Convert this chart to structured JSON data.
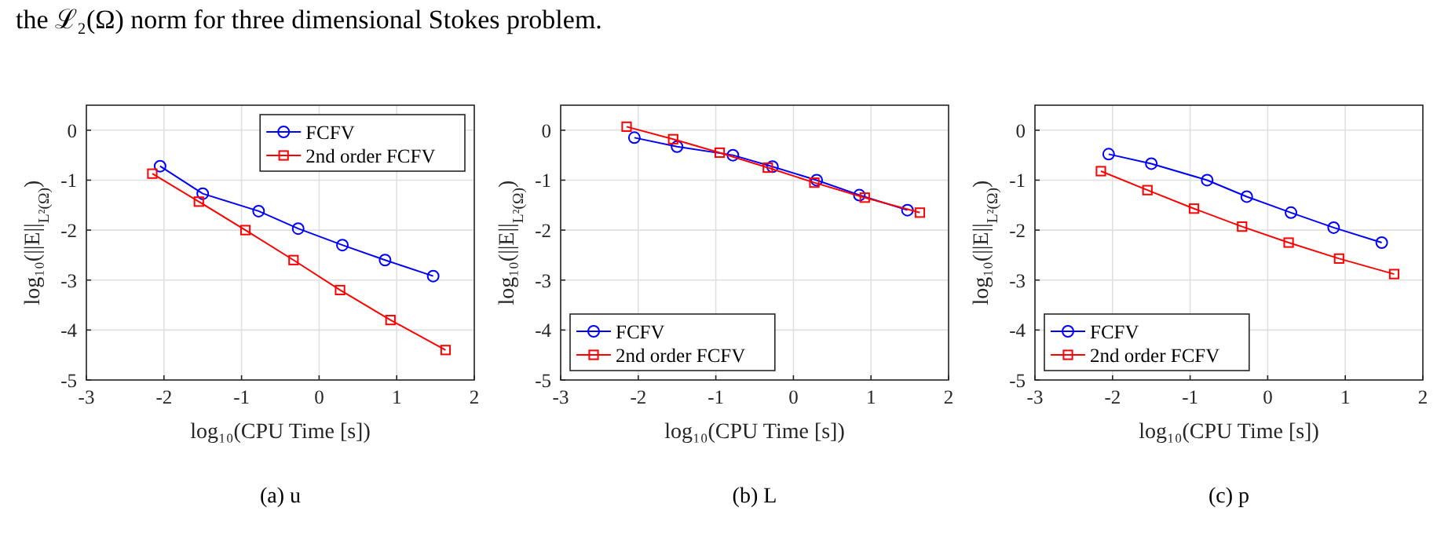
{
  "chart_data": [
    {
      "type": "line",
      "subtitle": "(a) u",
      "xlabel": "log₁₀(CPU Time [s])",
      "ylabel": "log₁₀(||E||$_{L²(Ω)}$)",
      "xlim": [
        -3,
        2
      ],
      "ylim": [
        -5,
        0.5
      ],
      "xticks": [
        -3,
        -2,
        -1,
        0,
        1,
        2
      ],
      "yticks": [
        -5,
        -4,
        -3,
        -2,
        -1,
        0
      ],
      "grid": true,
      "legend": "top right",
      "annotations": [
        "the ℒ₂(Ω) norm for three dimensional Stokes problem."
      ],
      "series": [
        {
          "name": "FCFV",
          "color": "#0000ff",
          "marker": "circle",
          "x": [
            -2.05,
            -1.5,
            -0.78,
            -0.27,
            0.3,
            0.85,
            1.47
          ],
          "values": [
            -0.72,
            -1.27,
            -1.62,
            -1.97,
            -2.3,
            -2.6,
            -2.92
          ]
        },
        {
          "name": "2nd order FCFV",
          "color": "#ff0000",
          "marker": "square",
          "x": [
            -2.15,
            -1.55,
            -0.95,
            -0.33,
            0.27,
            0.92,
            1.63
          ],
          "values": [
            -0.87,
            -1.43,
            -2.0,
            -2.6,
            -3.2,
            -3.8,
            -4.4
          ]
        }
      ]
    },
    {
      "type": "line",
      "subtitle": "(b) L",
      "xlabel": "log₁₀(CPU Time [s])",
      "ylabel": "log₁₀(||E||$_{L²(Ω)}$)",
      "xlim": [
        -3,
        2
      ],
      "ylim": [
        -5,
        0.5
      ],
      "xticks": [
        -3,
        -2,
        -1,
        0,
        1,
        2
      ],
      "yticks": [
        -5,
        -4,
        -3,
        -2,
        -1,
        0
      ],
      "grid": true,
      "legend": "bottom left",
      "series": [
        {
          "name": "FCFV",
          "color": "#0000ff",
          "marker": "circle",
          "x": [
            -2.05,
            -1.5,
            -0.78,
            -0.27,
            0.3,
            0.85,
            1.47
          ],
          "values": [
            -0.15,
            -0.33,
            -0.5,
            -0.73,
            -1.0,
            -1.3,
            -1.6
          ]
        },
        {
          "name": "2nd order FCFV",
          "color": "#ff0000",
          "marker": "square",
          "x": [
            -2.15,
            -1.55,
            -0.95,
            -0.33,
            0.27,
            0.92,
            1.63
          ],
          "values": [
            0.07,
            -0.18,
            -0.45,
            -0.75,
            -1.05,
            -1.35,
            -1.65
          ]
        }
      ]
    },
    {
      "type": "line",
      "subtitle": "(c) p",
      "xlabel": "log₁₀(CPU Time [s])",
      "ylabel": "log₁₀(||E||$_{L²(Ω)}$)",
      "xlim": [
        -3,
        2
      ],
      "ylim": [
        -5,
        0.5
      ],
      "xticks": [
        -3,
        -2,
        -1,
        0,
        1,
        2
      ],
      "yticks": [
        -5,
        -4,
        -3,
        -2,
        -1,
        0
      ],
      "grid": true,
      "legend": "bottom left",
      "series": [
        {
          "name": "FCFV",
          "color": "#0000ff",
          "marker": "circle",
          "x": [
            -2.05,
            -1.5,
            -0.78,
            -0.27,
            0.3,
            0.85,
            1.47
          ],
          "values": [
            -0.48,
            -0.67,
            -1.0,
            -1.33,
            -1.65,
            -1.95,
            -2.25
          ]
        },
        {
          "name": "2nd order FCFV",
          "color": "#ff0000",
          "marker": "square",
          "x": [
            -2.15,
            -1.55,
            -0.95,
            -0.33,
            0.27,
            0.92,
            1.63
          ],
          "values": [
            -0.82,
            -1.2,
            -1.57,
            -1.93,
            -2.25,
            -2.57,
            -2.88
          ]
        }
      ]
    }
  ]
}
